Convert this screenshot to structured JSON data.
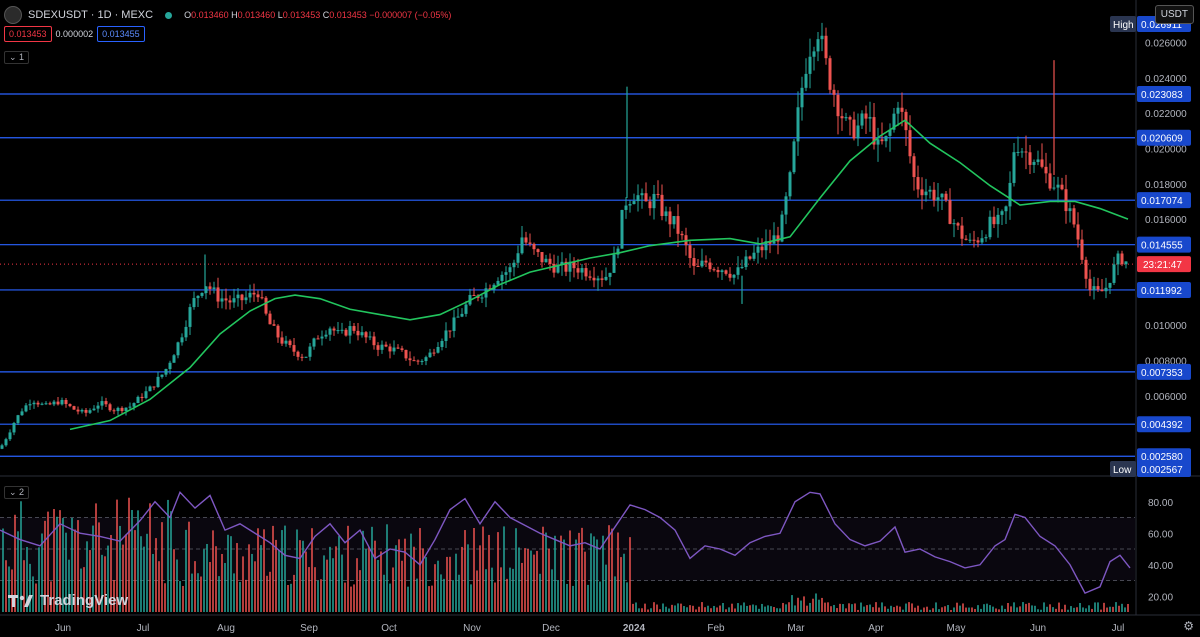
{
  "header": {
    "symbol": "SDEXUSDT · 1D · MEXC",
    "ohlc": {
      "o": "0.013460",
      "h": "0.013460",
      "l": "0.013453",
      "c": "0.013453",
      "chg": "−0.000007 (−0.05%)"
    },
    "bid": "0.013453",
    "spread": "0.000002",
    "ask": "0.013455",
    "indicator_1": "1",
    "indicator_2": "2"
  },
  "currency_button": "USDT",
  "watermark": "TradingView",
  "colors": {
    "up": "#26a69a",
    "down": "#ef5350",
    "ma": "#22c55e",
    "rsi": "#7e57c2",
    "hline": "#2962ff",
    "price": "#f23645"
  },
  "chart_data": {
    "type": "candlestick",
    "price_axis": {
      "min": 0.0018,
      "max": 0.0275,
      "ticks": [
        "0.026000",
        "0.024000",
        "0.022000",
        "0.020000",
        "0.018000",
        "0.016000",
        "0.010000",
        "0.008000",
        "0.006000"
      ]
    },
    "time_axis": [
      "Jun",
      "Jul",
      "Aug",
      "Sep",
      "Oct",
      "Nov",
      "Dec",
      "2024",
      "Feb",
      "Mar",
      "Apr",
      "May",
      "Jun",
      "Jul"
    ],
    "horizontal_levels": [
      "0.023083",
      "0.020609",
      "0.017074",
      "0.014555",
      "0.011992",
      "0.007353",
      "0.004392",
      "0.002580"
    ],
    "high_label": "High",
    "high_value": "0.026911",
    "low_label": "Low",
    "low_value": "0.002567",
    "last_price": "0.013453",
    "countdown": "23:21:47",
    "price_path": [
      [
        0,
        0.003
      ],
      [
        8,
        0.0038
      ],
      [
        15,
        0.0046
      ],
      [
        22,
        0.0052
      ],
      [
        32,
        0.0058
      ],
      [
        45,
        0.0054
      ],
      [
        60,
        0.0057
      ],
      [
        75,
        0.0052
      ],
      [
        85,
        0.005
      ],
      [
        100,
        0.0056
      ],
      [
        115,
        0.0052
      ],
      [
        130,
        0.0054
      ],
      [
        150,
        0.0064
      ],
      [
        165,
        0.0074
      ],
      [
        180,
        0.0092
      ],
      [
        192,
        0.0112
      ],
      [
        205,
        0.0124
      ],
      [
        218,
        0.0116
      ],
      [
        232,
        0.0113
      ],
      [
        245,
        0.0115
      ],
      [
        258,
        0.0119
      ],
      [
        268,
        0.0102
      ],
      [
        280,
        0.0092
      ],
      [
        292,
        0.0086
      ],
      [
        305,
        0.0082
      ],
      [
        318,
        0.0094
      ],
      [
        330,
        0.0099
      ],
      [
        340,
        0.0094
      ],
      [
        352,
        0.0099
      ],
      [
        365,
        0.0093
      ],
      [
        378,
        0.0088
      ],
      [
        390,
        0.0087
      ],
      [
        402,
        0.0084
      ],
      [
        415,
        0.0079
      ],
      [
        428,
        0.0082
      ],
      [
        440,
        0.0092
      ],
      [
        455,
        0.0102
      ],
      [
        470,
        0.0114
      ],
      [
        485,
        0.012
      ],
      [
        498,
        0.0128
      ],
      [
        512,
        0.0132
      ],
      [
        522,
        0.015
      ],
      [
        532,
        0.0142
      ],
      [
        545,
        0.0136
      ],
      [
        560,
        0.0132
      ],
      [
        575,
        0.0133
      ],
      [
        590,
        0.013
      ],
      [
        605,
        0.0127
      ],
      [
        615,
        0.0138
      ],
      [
        625,
        0.017
      ],
      [
        635,
        0.0175
      ],
      [
        645,
        0.0168
      ],
      [
        655,
        0.0172
      ],
      [
        665,
        0.0162
      ],
      [
        675,
        0.0157
      ],
      [
        685,
        0.0145
      ],
      [
        695,
        0.013
      ],
      [
        705,
        0.0136
      ],
      [
        715,
        0.0133
      ],
      [
        725,
        0.0132
      ],
      [
        735,
        0.0128
      ],
      [
        745,
        0.0135
      ],
      [
        758,
        0.0142
      ],
      [
        770,
        0.0147
      ],
      [
        780,
        0.0152
      ],
      [
        790,
        0.0182
      ],
      [
        800,
        0.0228
      ],
      [
        808,
        0.0255
      ],
      [
        818,
        0.0268
      ],
      [
        828,
        0.0242
      ],
      [
        838,
        0.0225
      ],
      [
        848,
        0.021
      ],
      [
        858,
        0.0212
      ],
      [
        868,
        0.0218
      ],
      [
        878,
        0.02
      ],
      [
        888,
        0.0205
      ],
      [
        898,
        0.0228
      ],
      [
        906,
        0.0208
      ],
      [
        915,
        0.018
      ],
      [
        928,
        0.0176
      ],
      [
        940,
        0.0172
      ],
      [
        950,
        0.0162
      ],
      [
        960,
        0.0152
      ],
      [
        970,
        0.0146
      ],
      [
        980,
        0.015
      ],
      [
        990,
        0.0157
      ],
      [
        1000,
        0.0158
      ],
      [
        1008,
        0.0168
      ],
      [
        1015,
        0.0205
      ],
      [
        1025,
        0.0198
      ],
      [
        1035,
        0.0195
      ],
      [
        1045,
        0.0185
      ],
      [
        1055,
        0.018
      ],
      [
        1065,
        0.017
      ],
      [
        1075,
        0.0156
      ],
      [
        1082,
        0.014
      ],
      [
        1090,
        0.012
      ],
      [
        1098,
        0.0118
      ],
      [
        1105,
        0.012
      ],
      [
        1112,
        0.013
      ],
      [
        1120,
        0.0139
      ],
      [
        1128,
        0.0135
      ]
    ],
    "moving_average": [
      [
        70,
        0.0041
      ],
      [
        110,
        0.0046
      ],
      [
        150,
        0.0058
      ],
      [
        190,
        0.0076
      ],
      [
        220,
        0.0095
      ],
      [
        250,
        0.0108
      ],
      [
        275,
        0.0115
      ],
      [
        295,
        0.0117
      ],
      [
        320,
        0.0115
      ],
      [
        350,
        0.0109
      ],
      [
        380,
        0.0106
      ],
      [
        410,
        0.0103
      ],
      [
        440,
        0.0106
      ],
      [
        470,
        0.0114
      ],
      [
        500,
        0.0123
      ],
      [
        530,
        0.013
      ],
      [
        560,
        0.0134
      ],
      [
        590,
        0.0138
      ],
      [
        620,
        0.0141
      ],
      [
        650,
        0.0145
      ],
      [
        690,
        0.0148
      ],
      [
        730,
        0.0149
      ],
      [
        760,
        0.0146
      ],
      [
        790,
        0.015
      ],
      [
        820,
        0.0172
      ],
      [
        850,
        0.0193
      ],
      [
        880,
        0.0207
      ],
      [
        905,
        0.0216
      ],
      [
        930,
        0.0203
      ],
      [
        960,
        0.0192
      ],
      [
        990,
        0.0179
      ],
      [
        1020,
        0.0168
      ],
      [
        1050,
        0.017
      ],
      [
        1075,
        0.017
      ],
      [
        1100,
        0.0166
      ],
      [
        1128,
        0.016
      ]
    ],
    "rsi": {
      "axis_ticks": [
        "80.00",
        "60.00",
        "40.00",
        "20.00"
      ],
      "levels": [
        70,
        50,
        30
      ],
      "values": [
        [
          0,
          62
        ],
        [
          20,
          56
        ],
        [
          40,
          52
        ],
        [
          60,
          66
        ],
        [
          80,
          60
        ],
        [
          100,
          58
        ],
        [
          120,
          55
        ],
        [
          140,
          68
        ],
        [
          155,
          80
        ],
        [
          170,
          70
        ],
        [
          180,
          86
        ],
        [
          195,
          76
        ],
        [
          210,
          84
        ],
        [
          225,
          62
        ],
        [
          240,
          66
        ],
        [
          255,
          60
        ],
        [
          270,
          54
        ],
        [
          285,
          46
        ],
        [
          300,
          44
        ],
        [
          315,
          58
        ],
        [
          330,
          66
        ],
        [
          345,
          54
        ],
        [
          360,
          62
        ],
        [
          375,
          44
        ],
        [
          390,
          50
        ],
        [
          405,
          48
        ],
        [
          420,
          40
        ],
        [
          435,
          56
        ],
        [
          450,
          75
        ],
        [
          465,
          82
        ],
        [
          480,
          66
        ],
        [
          495,
          80
        ],
        [
          510,
          70
        ],
        [
          525,
          65
        ],
        [
          540,
          60
        ],
        [
          555,
          56
        ],
        [
          570,
          52
        ],
        [
          585,
          54
        ],
        [
          600,
          50
        ],
        [
          615,
          64
        ],
        [
          630,
          78
        ],
        [
          645,
          75
        ],
        [
          660,
          70
        ],
        [
          675,
          62
        ],
        [
          690,
          44
        ],
        [
          705,
          52
        ],
        [
          720,
          50
        ],
        [
          735,
          46
        ],
        [
          750,
          54
        ],
        [
          765,
          58
        ],
        [
          780,
          60
        ],
        [
          795,
          80
        ],
        [
          810,
          86
        ],
        [
          820,
          85
        ],
        [
          835,
          66
        ],
        [
          850,
          56
        ],
        [
          865,
          52
        ],
        [
          880,
          55
        ],
        [
          895,
          64
        ],
        [
          905,
          48
        ],
        [
          920,
          50
        ],
        [
          935,
          45
        ],
        [
          950,
          42
        ],
        [
          965,
          38
        ],
        [
          980,
          40
        ],
        [
          995,
          52
        ],
        [
          1005,
          56
        ],
        [
          1015,
          72
        ],
        [
          1025,
          70
        ],
        [
          1040,
          58
        ],
        [
          1055,
          52
        ],
        [
          1070,
          40
        ],
        [
          1085,
          22
        ],
        [
          1100,
          26
        ],
        [
          1110,
          42
        ],
        [
          1120,
          46
        ],
        [
          1130,
          38
        ]
      ]
    }
  }
}
